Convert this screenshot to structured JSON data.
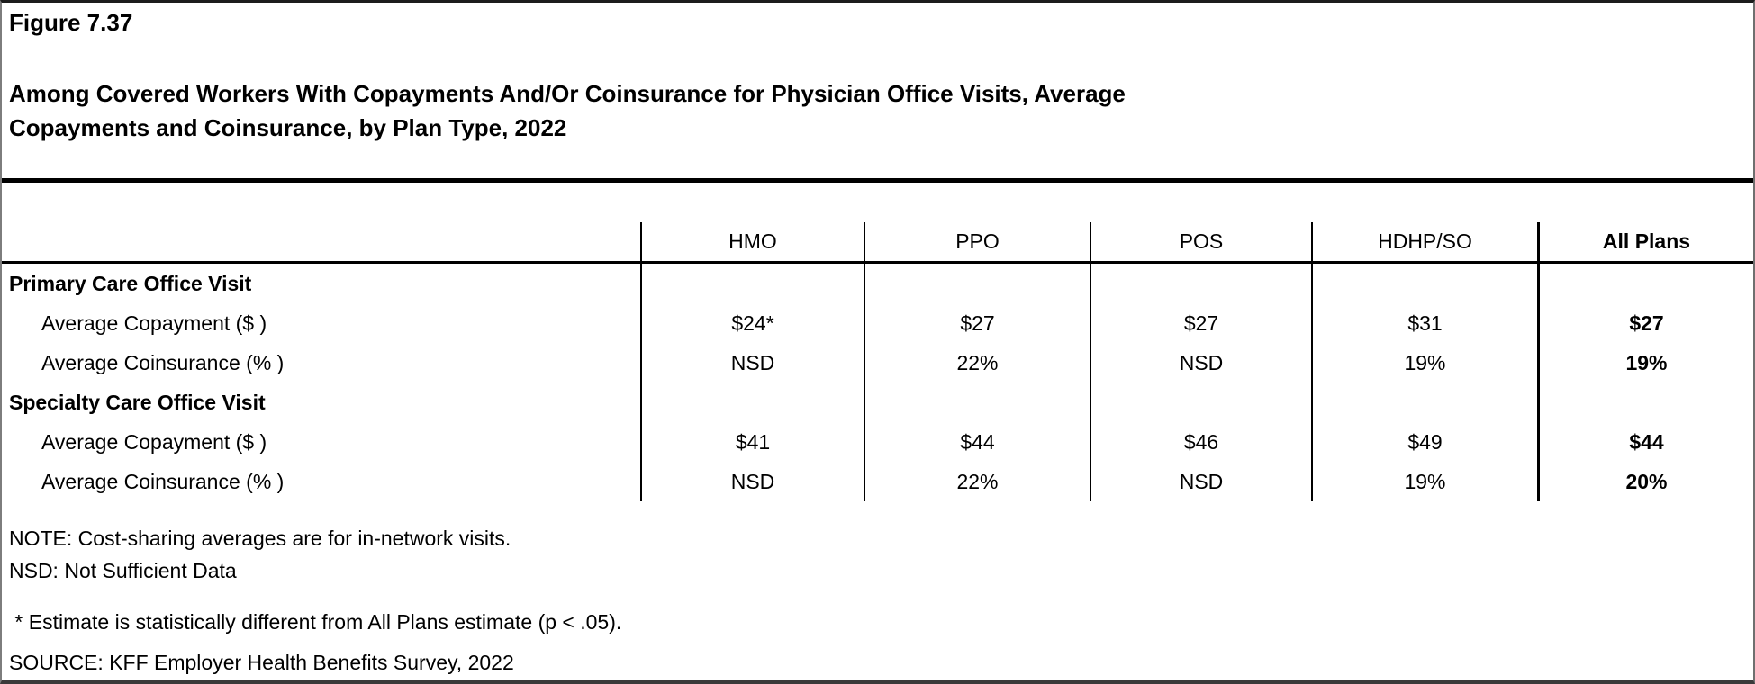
{
  "header": {
    "figure_number": "Figure 7.37",
    "title_line1": "Among Covered Workers With Copayments And/Or Coinsurance for Physician Office Visits, Average",
    "title_line2": "Copayments and Coinsurance, by Plan Type, 2022"
  },
  "chart_data": {
    "type": "table",
    "title": "Among Covered Workers With Copayments And/Or Coinsurance for Physician Office Visits, Average Copayments and Coinsurance, by Plan Type, 2022",
    "columns": [
      "HMO",
      "PPO",
      "POS",
      "HDHP/SO",
      "All Plans"
    ],
    "sections": [
      {
        "title": "Primary Care Office Visit",
        "rows": [
          {
            "label": "Average Copayment ($ )",
            "values": [
              "$24*",
              "$27",
              "$27",
              "$31",
              "$27"
            ]
          },
          {
            "label": "Average Coinsurance (% )",
            "values": [
              "NSD",
              "22%",
              "NSD",
              "19%",
              "19%"
            ]
          }
        ]
      },
      {
        "title": "Specialty Care Office Visit",
        "rows": [
          {
            "label": "Average Copayment ($ )",
            "values": [
              "$41",
              "$44",
              "$46",
              "$49",
              "$44"
            ]
          },
          {
            "label": "Average Coinsurance (% )",
            "values": [
              "NSD",
              "22%",
              "NSD",
              "19%",
              "20%"
            ]
          }
        ]
      }
    ],
    "layout_hints": {
      "all_plans_column_bold": true,
      "grid": "vertical separators between plan columns only"
    }
  },
  "notes": {
    "note": "NOTE: Cost-sharing averages are for in-network visits.",
    "nsd": "NSD: Not Sufficient Data",
    "significance": " * Estimate is statistically different from All Plans estimate (p < .05).",
    "source": "SOURCE: KFF Employer Health Benefits Survey, 2022"
  }
}
